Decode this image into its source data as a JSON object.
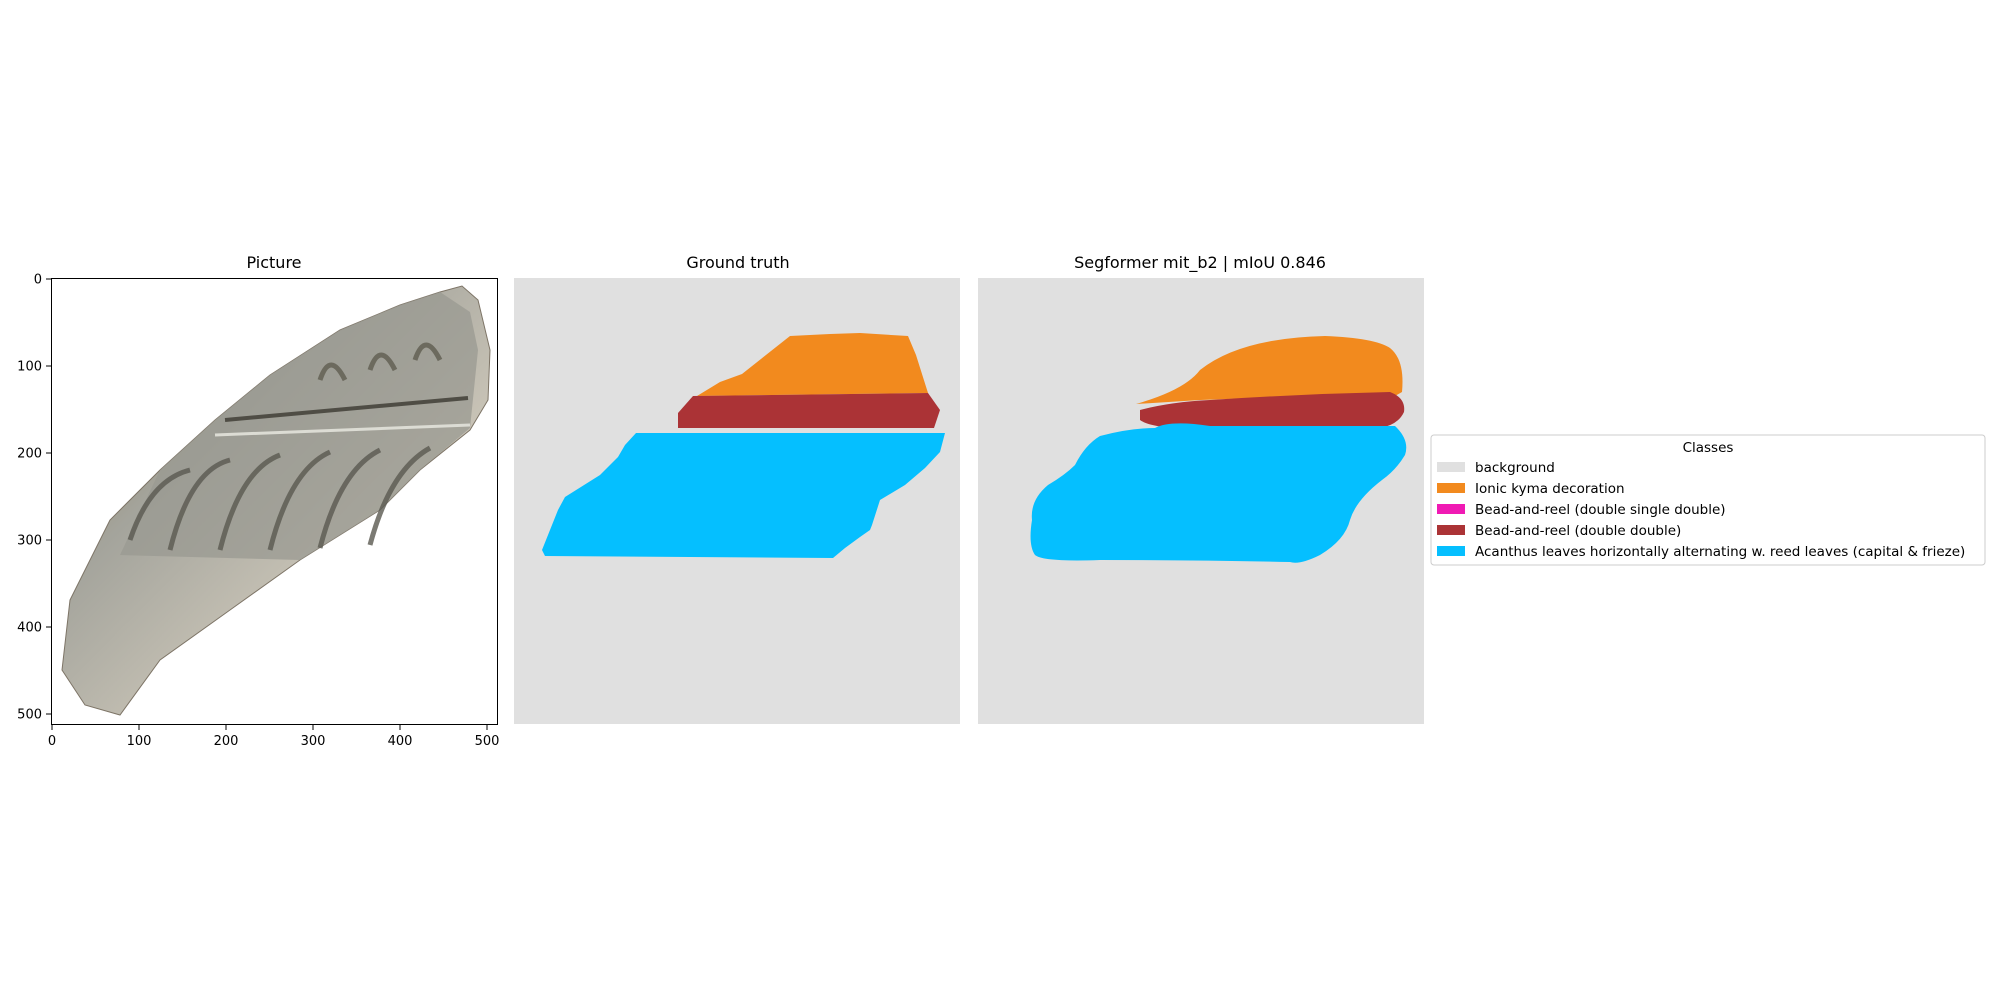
{
  "panels": {
    "picture": {
      "title": "Picture",
      "x_ticks": [
        "0",
        "100",
        "200",
        "300",
        "400",
        "500"
      ],
      "y_ticks": [
        "0",
        "100",
        "200",
        "300",
        "400",
        "500"
      ]
    },
    "ground_truth": {
      "title": "Ground truth"
    },
    "prediction": {
      "title": "Segformer mit_b2 | mIoU 0.846"
    }
  },
  "legend": {
    "title": "Classes",
    "items": [
      {
        "label": "background",
        "color": "#e0e0e0"
      },
      {
        "label": "Ionic kyma decoration",
        "color": "#f28a1e"
      },
      {
        "label": "Bead-and-reel (double single double)",
        "color": "#f01ab4"
      },
      {
        "label": "Bead-and-reel (double double)",
        "color": "#ab3336"
      },
      {
        "label": "Acanthus leaves horizontally alternating w. reed leaves (capital & frieze)",
        "color": "#05bfff"
      }
    ]
  },
  "colors": {
    "background_class": "#e0e0e0",
    "kyma": "#f28a1e",
    "bead_reel_dsd": "#f01ab4",
    "bead_reel_dd": "#ab3336",
    "acanthus": "#05bfff"
  }
}
